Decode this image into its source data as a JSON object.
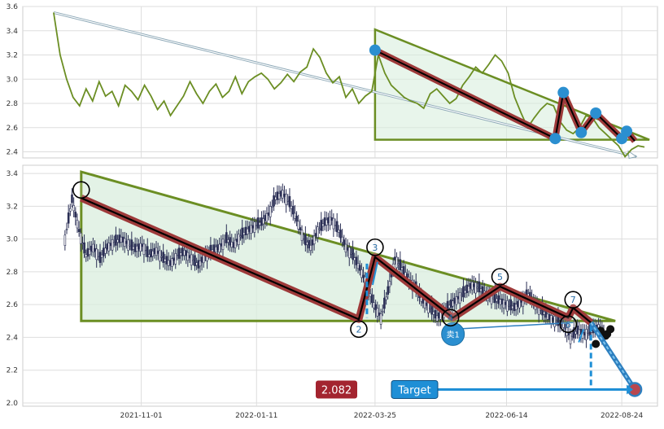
{
  "chart_data": [
    {
      "type": "line",
      "panel": "top",
      "ylim": [
        2.35,
        3.6
      ],
      "y_ticks": [
        2.4,
        2.6,
        2.8,
        3.0,
        3.2,
        3.4,
        3.6
      ],
      "grid": true,
      "series": [
        {
          "color": "#6b8e23",
          "x": [
            "2021-09-08",
            "2021-09-12",
            "2021-09-16",
            "2021-09-20",
            "2021-09-24",
            "2021-09-28",
            "2021-10-02",
            "2021-10-06",
            "2021-10-10",
            "2021-10-14",
            "2021-10-18",
            "2021-10-22",
            "2021-10-26",
            "2021-10-30",
            "2021-11-03",
            "2021-11-07",
            "2021-11-11",
            "2021-11-15",
            "2021-11-19",
            "2021-11-23",
            "2021-11-27",
            "2021-12-01",
            "2021-12-05",
            "2021-12-09",
            "2021-12-13",
            "2021-12-17",
            "2021-12-21",
            "2021-12-25",
            "2021-12-29",
            "2022-01-02",
            "2022-01-06",
            "2022-01-10",
            "2022-01-14",
            "2022-01-18",
            "2022-01-22",
            "2022-01-26",
            "2022-01-30",
            "2022-02-03",
            "2022-02-07",
            "2022-02-11",
            "2022-02-15",
            "2022-02-19",
            "2022-02-23",
            "2022-02-27",
            "2022-03-03",
            "2022-03-07",
            "2022-03-11",
            "2022-03-15",
            "2022-03-19",
            "2022-03-23",
            "2022-03-27",
            "2022-03-31",
            "2022-04-04",
            "2022-04-08",
            "2022-04-12",
            "2022-04-16",
            "2022-04-20",
            "2022-04-24",
            "2022-04-28",
            "2022-05-02",
            "2022-05-06",
            "2022-05-10",
            "2022-05-14",
            "2022-05-18",
            "2022-05-22",
            "2022-05-26",
            "2022-05-30",
            "2022-06-03",
            "2022-06-07",
            "2022-06-11",
            "2022-06-15",
            "2022-06-19",
            "2022-06-23",
            "2022-06-27",
            "2022-07-01",
            "2022-07-05",
            "2022-07-09",
            "2022-07-13",
            "2022-07-17",
            "2022-07-21",
            "2022-07-25",
            "2022-07-29",
            "2022-08-02",
            "2022-08-06",
            "2022-08-10",
            "2022-08-14",
            "2022-08-18",
            "2022-08-22",
            "2022-08-26",
            "2022-08-30",
            "2022-09-03",
            "2022-09-07"
          ],
          "values": [
            3.55,
            3.2,
            3.0,
            2.85,
            2.78,
            2.92,
            2.82,
            2.98,
            2.86,
            2.9,
            2.78,
            2.95,
            2.9,
            2.83,
            2.95,
            2.86,
            2.75,
            2.82,
            2.7,
            2.78,
            2.86,
            2.98,
            2.88,
            2.8,
            2.9,
            2.96,
            2.85,
            2.9,
            3.02,
            2.88,
            2.98,
            3.02,
            3.05,
            3.0,
            2.92,
            2.97,
            3.04,
            2.98,
            3.06,
            3.1,
            3.25,
            3.18,
            3.05,
            2.97,
            3.02,
            2.85,
            2.92,
            2.8,
            2.86,
            2.9,
            3.2,
            3.05,
            2.95,
            2.9,
            2.85,
            2.82,
            2.8,
            2.76,
            2.88,
            2.92,
            2.86,
            2.8,
            2.84,
            2.95,
            3.02,
            3.1,
            3.05,
            3.12,
            3.2,
            3.15,
            3.05,
            2.85,
            2.72,
            2.6,
            2.68,
            2.75,
            2.8,
            2.78,
            2.65,
            2.58,
            2.55,
            2.6,
            2.7,
            2.68,
            2.6,
            2.55,
            2.5,
            2.45,
            2.36,
            2.42,
            2.45,
            2.44
          ]
        }
      ]
    },
    {
      "type": "candlestick",
      "panel": "bottom",
      "ylim": [
        1.98,
        3.45
      ],
      "y_ticks": [
        2.0,
        2.2,
        2.4,
        2.6,
        2.8,
        3.0,
        3.2,
        3.4
      ],
      "x_ticks": [
        "2021-11-01",
        "2022-01-11",
        "2022-03-25",
        "2022-06-14",
        "2022-08-24"
      ],
      "grid": true,
      "close_series": [
        3.0,
        3.24,
        3.05,
        2.9,
        2.95,
        2.88,
        2.95,
        2.98,
        3.0,
        2.97,
        2.94,
        2.96,
        2.9,
        2.93,
        2.88,
        2.85,
        2.9,
        2.92,
        2.88,
        2.84,
        2.9,
        2.93,
        2.95,
        3.0,
        2.96,
        3.02,
        3.05,
        3.08,
        3.1,
        3.15,
        3.25,
        3.28,
        3.22,
        3.12,
        3.0,
        2.95,
        3.05,
        3.1,
        3.12,
        3.05,
        2.95,
        2.9,
        2.82,
        2.72,
        2.6,
        2.52,
        2.68,
        2.88,
        2.82,
        2.75,
        2.7,
        2.62,
        2.58,
        2.52,
        2.56,
        2.6,
        2.64,
        2.68,
        2.72,
        2.7,
        2.66,
        2.64,
        2.62,
        2.6,
        2.58,
        2.62,
        2.66,
        2.6,
        2.56,
        2.52,
        2.5,
        2.48,
        2.4,
        2.44,
        2.42,
        2.44,
        2.46,
        2.43
      ],
      "waves": {
        "points": [
          {
            "label": "",
            "date": "2021-09-25",
            "value": 3.25
          },
          {
            "label": "2",
            "date": "2022-03-15",
            "value": 2.51
          },
          {
            "label": "3",
            "date": "2022-03-25",
            "value": 2.89
          },
          {
            "label": "4",
            "date": "2022-05-12",
            "value": 2.52
          },
          {
            "label": "5",
            "date": "2022-06-10",
            "value": 2.71
          },
          {
            "label": "6",
            "date": "2022-07-22",
            "value": 2.52
          },
          {
            "label": "7",
            "date": "2022-07-25",
            "value": 2.58
          },
          {
            "label": "",
            "date": "2022-08-05",
            "value": 2.49
          }
        ],
        "triangle": {
          "start_date": "2021-09-25",
          "end_date": "2022-08-20",
          "top": 3.41,
          "bottom": 2.5
        }
      },
      "annotations": {
        "sell_marker": "卖1",
        "price_badge": "2.082",
        "target_label": "Target",
        "target_value": 2.082
      }
    }
  ],
  "colors": {
    "line": "#6b8e23",
    "triangle_edge": "#6b8e23",
    "triangle_fill": "#d9eedd",
    "wave_outer": "#9e3a3a",
    "wave_inner": "#000000",
    "marker_blue": "#2b8fd0",
    "dashed_blue": "#1f8fd6",
    "price_badge": "#a3242f",
    "target_badge": "#1f8fd6",
    "candle": "#2b2f55"
  }
}
